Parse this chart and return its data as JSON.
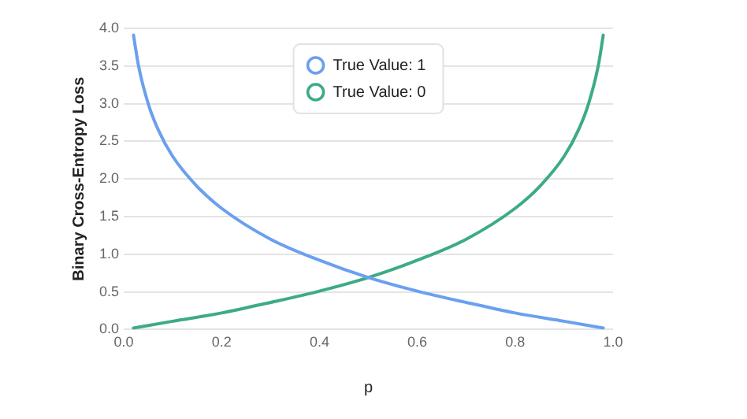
{
  "chart_data": {
    "type": "line",
    "xlabel": "p",
    "ylabel": "Binary Cross-Entropy Loss",
    "xlim": [
      0,
      1
    ],
    "ylim": [
      0,
      4
    ],
    "xticks": [
      {
        "value": 0,
        "label": "0.0"
      },
      {
        "value": 0.2,
        "label": "0.2"
      },
      {
        "value": 0.4,
        "label": "0.4"
      },
      {
        "value": 0.6,
        "label": "0.6"
      },
      {
        "value": 0.8,
        "label": "0.8"
      },
      {
        "value": 1,
        "label": "1.0"
      }
    ],
    "yticks": [
      {
        "value": 0,
        "label": "0.0"
      },
      {
        "value": 0.5,
        "label": "0.5"
      },
      {
        "value": 1,
        "label": "1.0"
      },
      {
        "value": 1.5,
        "label": "1.5"
      },
      {
        "value": 2,
        "label": "2.0"
      },
      {
        "value": 2.5,
        "label": "2.5"
      },
      {
        "value": 3,
        "label": "3.0"
      },
      {
        "value": 3.5,
        "label": "3.5"
      },
      {
        "value": 4,
        "label": "4.0"
      }
    ],
    "grid": "y",
    "legend": "top",
    "marker": "none",
    "line_style": "solid",
    "series": [
      {
        "name": "True Value: 1",
        "color": "#6aa0ef",
        "x": [
          0.02,
          0.03,
          0.05,
          0.07,
          0.1,
          0.15,
          0.2,
          0.3,
          0.4,
          0.5,
          0.6,
          0.7,
          0.8,
          0.9,
          0.98
        ],
        "values": [
          3.91,
          3.51,
          3.0,
          2.66,
          2.3,
          1.9,
          1.61,
          1.2,
          0.92,
          0.69,
          0.51,
          0.36,
          0.22,
          0.11,
          0.02
        ]
      },
      {
        "name": "True Value: 0",
        "color": "#3dab86",
        "x": [
          0.02,
          0.1,
          0.2,
          0.3,
          0.4,
          0.5,
          0.6,
          0.7,
          0.8,
          0.85,
          0.9,
          0.93,
          0.95,
          0.97,
          0.98
        ],
        "values": [
          0.02,
          0.11,
          0.22,
          0.36,
          0.51,
          0.69,
          0.92,
          1.2,
          1.61,
          1.9,
          2.3,
          2.66,
          3.0,
          3.51,
          3.91
        ]
      }
    ]
  }
}
